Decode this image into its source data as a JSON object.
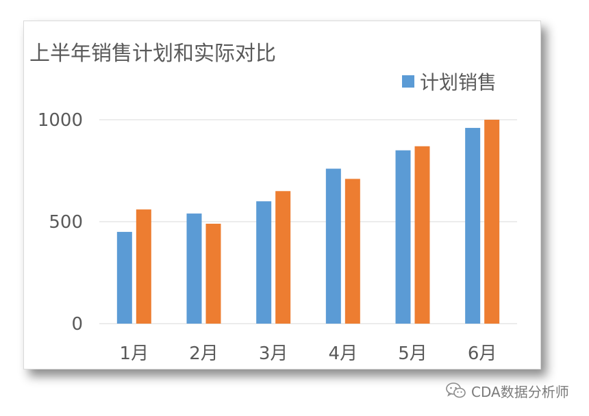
{
  "chart_data": {
    "type": "bar",
    "title": "上半年销售计划和实际对比",
    "categories": [
      "1月",
      "2月",
      "3月",
      "4月",
      "5月",
      "6月"
    ],
    "series": [
      {
        "name": "计划销售",
        "values": [
          450,
          540,
          600,
          760,
          850,
          960
        ],
        "color": "#5b9bd5"
      },
      {
        "values": [
          560,
          490,
          650,
          710,
          870,
          1000
        ],
        "color": "#ed7d31"
      }
    ],
    "ylim": [
      0,
      1000
    ],
    "yticks": [
      0,
      500,
      1000
    ],
    "grid": true,
    "legend_position": "top-right"
  },
  "watermark": {
    "text": "CDA数据分析师",
    "icon": "wechat-icon"
  }
}
